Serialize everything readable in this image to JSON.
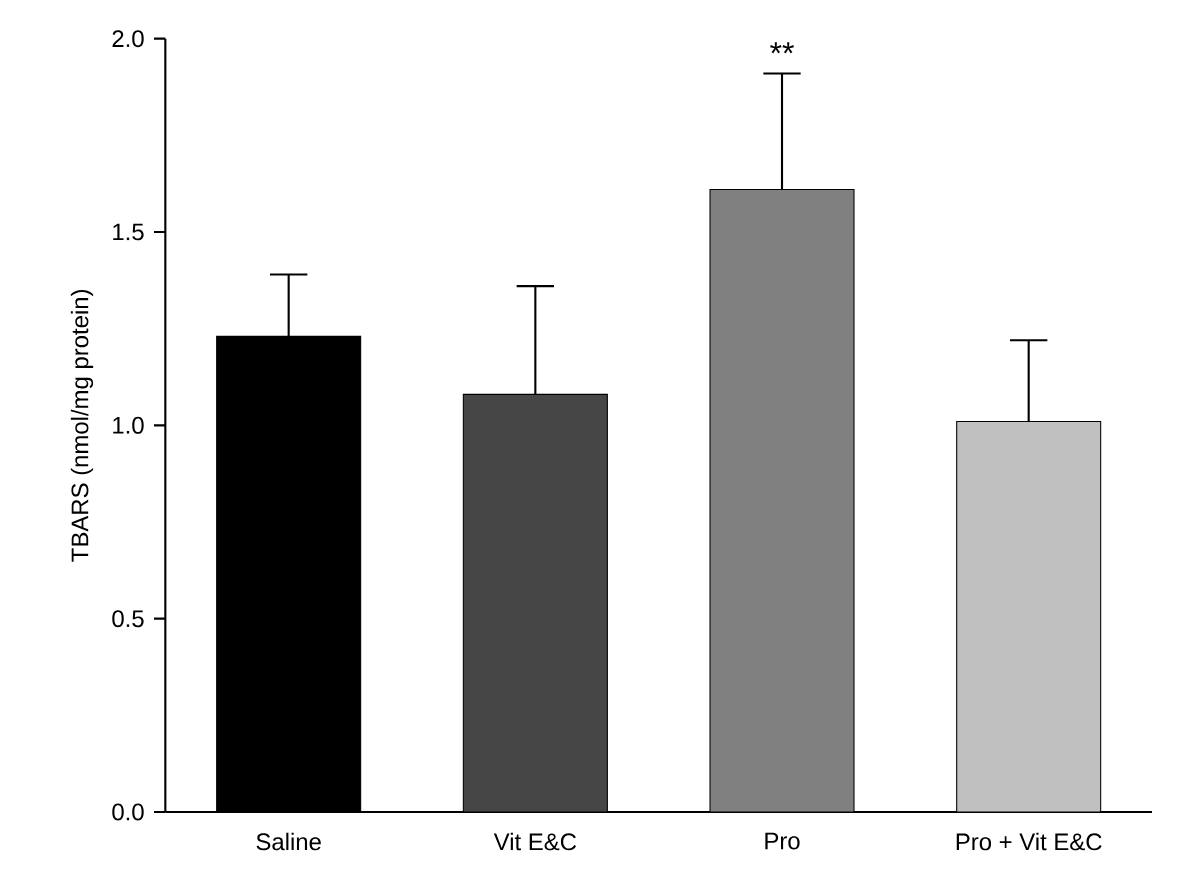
{
  "chart_data": {
    "type": "bar",
    "ylabel": "TBARS (nmol/mg protein)",
    "categories": [
      "Saline",
      "Vit E&C",
      "Pro",
      "Pro + Vit E&C"
    ],
    "values": [
      1.23,
      1.08,
      1.61,
      1.01
    ],
    "errors": [
      [
        1.23,
        1.39
      ],
      [
        1.08,
        1.36
      ],
      [
        1.61,
        1.91
      ],
      [
        1.01,
        1.22
      ]
    ],
    "colors": [
      "#000000",
      "#464646",
      "#808080",
      "#c0c0c0"
    ],
    "ylim": [
      0,
      2.0
    ],
    "yticks": [
      {
        "value": 0,
        "label": "0.0"
      },
      {
        "value": 0.5,
        "label": "0.5"
      },
      {
        "value": 1.0,
        "label": "1.0"
      },
      {
        "value": 1.5,
        "label": "1.5"
      },
      {
        "value": 2.0,
        "label": "2.0"
      }
    ],
    "annotations": [
      "**"
    ],
    "grid": false
  }
}
